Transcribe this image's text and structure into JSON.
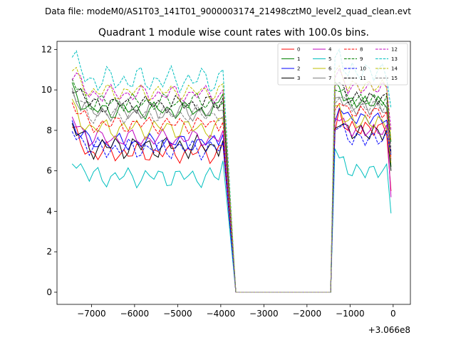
{
  "suptitle": "Data file: modeM0/AS1T03_141T01_9000003174_21498cztM0_level2_quad_clean.evt",
  "chart_data": {
    "type": "line",
    "title": "Quadrant 1 module wise count rates with 100.0s bins.",
    "xlabel": "",
    "ylabel": "",
    "x_offset_label": "+3.066e8",
    "xlim": [
      -7800,
      400
    ],
    "ylim": [
      -0.6,
      12.4
    ],
    "xticks": [
      -7000,
      -6000,
      -5000,
      -4000,
      -3000,
      -2000,
      -1000,
      0
    ],
    "xtick_labels": [
      "−7000",
      "−6000",
      "−5000",
      "−4000",
      "−3000",
      "−2000",
      "−1000",
      "0"
    ],
    "yticks": [
      0,
      2,
      4,
      6,
      8,
      10,
      12
    ],
    "ytick_labels": [
      "0",
      "2",
      "4",
      "6",
      "8",
      "10",
      "12"
    ],
    "legend_position": "top-right",
    "segment1": {
      "start": -7450,
      "step": 100,
      "count": 36
    },
    "drop": {
      "x": [
        -3650,
        -3550
      ],
      "y": [
        0,
        0
      ]
    },
    "gap": {
      "start": -3650,
      "end": -1450,
      "step": 100
    },
    "segment2": {
      "start": -1350,
      "step": 100,
      "count": 14
    },
    "series": [
      {
        "name": "0",
        "color": "#ff0000",
        "dash": false,
        "level": 6.9,
        "amp": 0.35,
        "phase": 0.3,
        "rise_end": 7.9,
        "post": 8.1,
        "last": 5.0
      },
      {
        "name": "1",
        "color": "#008000",
        "dash": false,
        "level": 9.0,
        "amp": 0.3,
        "phase": 1.1,
        "rise_end": 10.4,
        "post": 9.4,
        "last": 6.2
      },
      {
        "name": "2",
        "color": "#0000ff",
        "dash": false,
        "level": 7.4,
        "amp": 0.3,
        "phase": 2.0,
        "rise_end": 8.4,
        "post": 8.6,
        "last": 6.9
      },
      {
        "name": "3",
        "color": "#000000",
        "dash": false,
        "level": 7.2,
        "amp": 0.4,
        "phase": 2.7,
        "rise_end": 8.1,
        "post": 7.9,
        "last": 6.0
      },
      {
        "name": "4",
        "color": "#bf00bf",
        "dash": false,
        "level": 7.6,
        "amp": 0.3,
        "phase": 3.5,
        "rise_end": 8.6,
        "post": 8.0,
        "last": 4.7
      },
      {
        "name": "5",
        "color": "#00bfbf",
        "dash": false,
        "level": 5.7,
        "amp": 0.35,
        "phase": 4.2,
        "rise_end": 7.1,
        "post": 6.0,
        "last": 3.9
      },
      {
        "name": "6",
        "color": "#bfbf00",
        "dash": false,
        "level": 8.1,
        "amp": 0.35,
        "phase": 0.8,
        "rise_end": 9.2,
        "post": 8.4,
        "last": 6.4
      },
      {
        "name": "7",
        "color": "#808080",
        "dash": false,
        "level": 8.9,
        "amp": 0.35,
        "phase": 1.7,
        "rise_end": 9.6,
        "post": 9.1,
        "last": 6.5
      },
      {
        "name": "8",
        "color": "#ff0000",
        "dash": true,
        "level": 8.3,
        "amp": 0.3,
        "phase": 2.4,
        "rise_end": 9.0,
        "post": 8.9,
        "last": 6.6
      },
      {
        "name": "9",
        "color": "#008000",
        "dash": true,
        "level": 9.4,
        "amp": 0.3,
        "phase": 3.1,
        "rise_end": 10.0,
        "post": 9.5,
        "last": 7.4
      },
      {
        "name": "10",
        "color": "#0000ff",
        "dash": true,
        "level": 7.1,
        "amp": 0.35,
        "phase": 3.9,
        "rise_end": 8.0,
        "post": 7.6,
        "last": 6.8
      },
      {
        "name": "11",
        "color": "#000000",
        "dash": true,
        "level": 9.3,
        "amp": 0.3,
        "phase": 4.6,
        "rise_end": 10.2,
        "post": 9.6,
        "last": 6.9
      },
      {
        "name": "12",
        "color": "#bf00bf",
        "dash": true,
        "level": 9.8,
        "amp": 0.3,
        "phase": 5.3,
        "rise_end": 10.6,
        "post": 10.1,
        "last": 8.0
      },
      {
        "name": "13",
        "color": "#00bfbf",
        "dash": true,
        "level": 10.5,
        "amp": 0.45,
        "phase": 0.1,
        "rise_end": 11.6,
        "post": 10.9,
        "last": 9.1
      },
      {
        "name": "14",
        "color": "#bfbf00",
        "dash": true,
        "level": 9.9,
        "amp": 0.3,
        "phase": 5.9,
        "rise_end": 10.9,
        "post": 10.2,
        "last": 7.5
      },
      {
        "name": "15",
        "color": "#808080",
        "dash": true,
        "level": 8.8,
        "amp": 0.3,
        "phase": 2.9,
        "rise_end": 9.3,
        "post": 9.2,
        "last": 6.8
      }
    ]
  }
}
